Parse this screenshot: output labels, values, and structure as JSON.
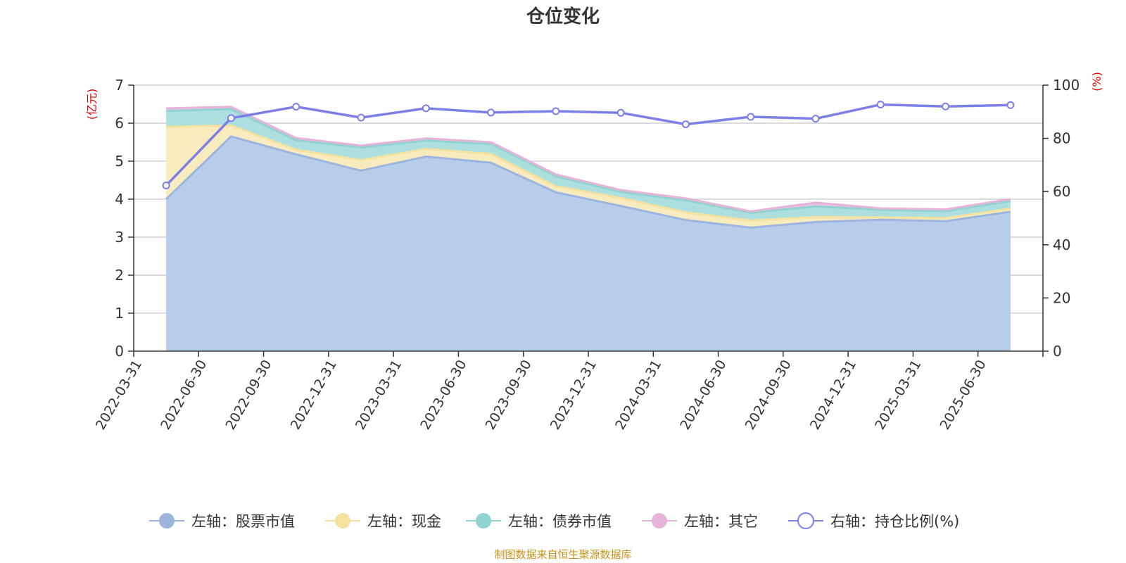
{
  "title": "仓位变化",
  "source": "制图数据来自恒生聚源数据库",
  "chart_data": {
    "type": "area",
    "title": "仓位变化",
    "categories": [
      "2022-03-31",
      "2022-06-30",
      "2022-09-30",
      "2022-12-31",
      "2023-03-31",
      "2023-06-30",
      "2023-09-30",
      "2023-12-31",
      "2024-03-31",
      "2024-06-30",
      "2024-09-30",
      "2024-12-31",
      "2025-03-31",
      "2025-06-30"
    ],
    "left_axis": {
      "unit": "(亿元)",
      "ylim": [
        0,
        7
      ],
      "ticks": [
        "0",
        "1",
        "2",
        "3",
        "4",
        "5",
        "6",
        "7"
      ]
    },
    "right_axis": {
      "unit": "(%)",
      "ylim": [
        0,
        100
      ],
      "ticks": [
        "0",
        "20",
        "40",
        "60",
        "80",
        "100"
      ]
    },
    "grid": true,
    "legend_position": "bottom",
    "stacked": true,
    "series": [
      {
        "name": "左轴：股票市值",
        "axis": "left",
        "color": "#9bb5e0",
        "fill": "#b8cdea",
        "values": [
          4.0,
          5.65,
          5.18,
          4.75,
          5.12,
          4.96,
          4.18,
          3.82,
          3.45,
          3.25,
          3.4,
          3.46,
          3.42,
          3.67
        ]
      },
      {
        "name": "左轴：现金",
        "axis": "left",
        "color": "#f5e2a0",
        "fill": "#f8ebbd",
        "values": [
          1.9,
          0.29,
          0.12,
          0.28,
          0.2,
          0.23,
          0.16,
          0.21,
          0.2,
          0.19,
          0.13,
          0.06,
          0.08,
          0.08
        ]
      },
      {
        "name": "左轴：债券市值",
        "axis": "left",
        "color": "#8fd3d3",
        "fill": "#aedfdf",
        "values": [
          0.42,
          0.43,
          0.25,
          0.33,
          0.22,
          0.26,
          0.26,
          0.16,
          0.32,
          0.2,
          0.28,
          0.2,
          0.18,
          0.2
        ]
      },
      {
        "name": "左轴：其它",
        "axis": "left",
        "color": "#e6b3d9",
        "fill": "#eac3e3",
        "values": [
          0.07,
          0.06,
          0.06,
          0.05,
          0.06,
          0.05,
          0.05,
          0.05,
          0.05,
          0.04,
          0.1,
          0.04,
          0.05,
          0.05
        ]
      },
      {
        "name": "右轴：持仓比例(%)",
        "axis": "right",
        "color": "#7b7fe6",
        "values": [
          62.3,
          87.6,
          91.9,
          87.8,
          91.3,
          89.7,
          90.2,
          89.6,
          85.3,
          88.1,
          87.4,
          92.7,
          92.0,
          92.5
        ]
      }
    ]
  }
}
